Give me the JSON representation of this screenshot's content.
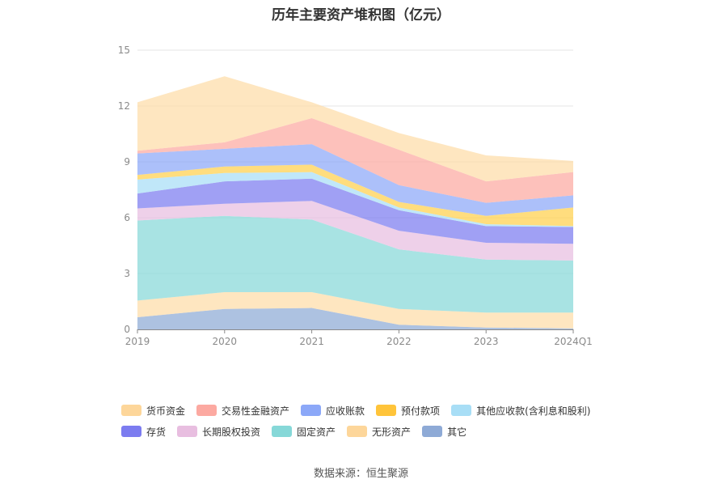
{
  "chart_data": {
    "type": "area",
    "stacked": true,
    "title": "历年主要资产堆积图（亿元）",
    "categories": [
      "2019",
      "2020",
      "2021",
      "2022",
      "2023",
      "2024Q1"
    ],
    "ylim": [
      0,
      15
    ],
    "yticks": [
      "0",
      "3",
      "6",
      "9",
      "12",
      "15"
    ],
    "grid": true,
    "series": [
      {
        "name": "其它",
        "color": "#8EAAD6",
        "values": [
          0.65,
          1.1,
          1.15,
          0.25,
          0.1,
          0.05
        ]
      },
      {
        "name": "无形资产",
        "color": "#FDDCA8",
        "values": [
          0.9,
          0.9,
          0.85,
          0.85,
          0.8,
          0.85
        ]
      },
      {
        "name": "固定资产",
        "color": "#86D8D8",
        "values": [
          4.3,
          4.1,
          3.9,
          3.2,
          2.85,
          2.8
        ]
      },
      {
        "name": "长期股权投资",
        "color": "#E8BEE0",
        "values": [
          0.65,
          0.65,
          1.0,
          1.0,
          0.9,
          0.9
        ]
      },
      {
        "name": "存货",
        "color": "#7C7CF0",
        "values": [
          0.8,
          1.2,
          1.2,
          1.1,
          0.9,
          0.9
        ]
      },
      {
        "name": "其他应收款(含利息和股利)",
        "color": "#A8DEF6",
        "values": [
          0.75,
          0.45,
          0.35,
          0.15,
          0.1,
          0.05
        ]
      },
      {
        "name": "预付款项",
        "color": "#FFD04C",
        "values": [
          0.25,
          0.35,
          0.4,
          0.3,
          0.45,
          1.0
        ]
      },
      {
        "name": "应收账款",
        "color": "#8CA8F8",
        "values": [
          1.15,
          0.95,
          1.1,
          0.9,
          0.7,
          0.65
        ]
      },
      {
        "name": "交易性金融资产",
        "color": "#FCA9A1",
        "values": [
          0.15,
          0.35,
          1.4,
          1.9,
          1.15,
          1.25
        ]
      },
      {
        "name": "货币资金",
        "color": "#FDDCA8",
        "values": [
          2.6,
          3.55,
          0.85,
          0.9,
          1.4,
          0.6
        ]
      }
    ],
    "legend": [
      {
        "name": "货币资金",
        "color": "#FDD69A"
      },
      {
        "name": "交易性金融资产",
        "color": "#FCA9A1"
      },
      {
        "name": "应收账款",
        "color": "#8CA8F8"
      },
      {
        "name": "预付款项",
        "color": "#FFC43A"
      },
      {
        "name": "其他应收款(含利息和股利)",
        "color": "#A8DEF6"
      },
      {
        "name": "存货",
        "color": "#7C7CF0"
      },
      {
        "name": "长期股权投资",
        "color": "#E8BEE0"
      },
      {
        "name": "固定资产",
        "color": "#86D8D8"
      },
      {
        "name": "无形资产",
        "color": "#FDD69A"
      },
      {
        "name": "其它",
        "color": "#8EAAD6"
      }
    ]
  },
  "footer": {
    "source": "数据来源：恒生聚源"
  }
}
